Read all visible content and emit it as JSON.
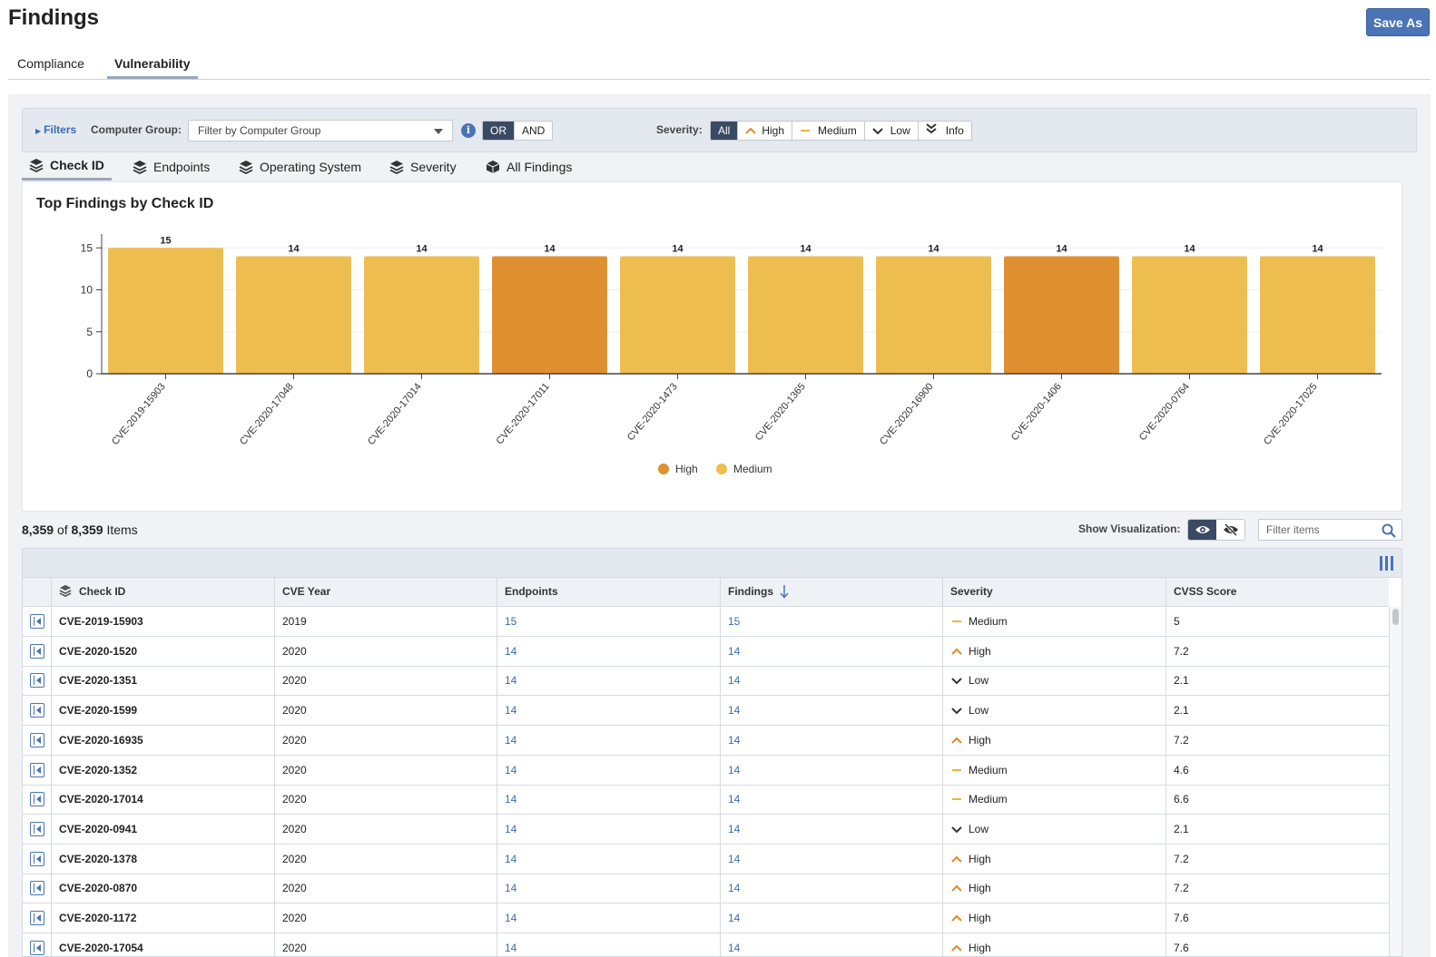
{
  "page": {
    "title": "Findings",
    "save_as_label": "Save As"
  },
  "main_tabs": [
    {
      "label": "Compliance",
      "active": false
    },
    {
      "label": "Vulnerability",
      "active": true
    }
  ],
  "filters": {
    "toggle_label": "Filters",
    "computer_group_label": "Computer Group:",
    "computer_group_placeholder": "Filter by Computer Group",
    "logic": [
      "OR",
      "AND"
    ],
    "logic_selected": "OR",
    "severity_label": "Severity:",
    "severity_options": [
      "All",
      "High",
      "Medium",
      "Low",
      "Info"
    ],
    "severity_selected": "All"
  },
  "sub_tabs": [
    {
      "label": "Check ID",
      "active": true
    },
    {
      "label": "Endpoints",
      "active": false
    },
    {
      "label": "Operating System",
      "active": false
    },
    {
      "label": "Severity",
      "active": false
    },
    {
      "label": "All Findings",
      "active": false
    }
  ],
  "chart_data": {
    "type": "bar",
    "title": "Top Findings by Check ID",
    "categories": [
      "CVE-2019-15903",
      "CVE-2020-17048",
      "CVE-2020-17014",
      "CVE-2020-17011",
      "CVE-2020-1473",
      "CVE-2020-1365",
      "CVE-2020-16900",
      "CVE-2020-1406",
      "CVE-2020-0764",
      "CVE-2020-17025"
    ],
    "values": [
      15,
      14,
      14,
      14,
      14,
      14,
      14,
      14,
      14,
      14
    ],
    "bar_severity": [
      "Medium",
      "Medium",
      "Medium",
      "High",
      "Medium",
      "Medium",
      "Medium",
      "High",
      "Medium",
      "Medium"
    ],
    "series": [
      {
        "name": "High",
        "color": "#df8f30"
      },
      {
        "name": "Medium",
        "color": "#edbe4f"
      }
    ],
    "yticks": [
      0,
      5,
      10,
      15
    ],
    "ylim": [
      0,
      16
    ],
    "xlabel": "",
    "ylabel": "",
    "legend_position": "bottom-center",
    "grid": true
  },
  "items": {
    "shown": "8,359",
    "of_label": "of",
    "total": "8,359",
    "suffix": "Items"
  },
  "visualization": {
    "label": "Show Visualization:",
    "state": "shown"
  },
  "search": {
    "placeholder": "Filter items"
  },
  "table": {
    "columns": [
      "Check ID",
      "CVE Year",
      "Endpoints",
      "Findings",
      "Severity",
      "CVSS Score"
    ],
    "sorted_column": "Findings",
    "sort_direction": "desc",
    "rows": [
      {
        "check_id": "CVE-2019-15903",
        "year": "2019",
        "endpoints": "15",
        "findings": "15",
        "severity": "Medium",
        "cvss": "5"
      },
      {
        "check_id": "CVE-2020-1520",
        "year": "2020",
        "endpoints": "14",
        "findings": "14",
        "severity": "High",
        "cvss": "7.2"
      },
      {
        "check_id": "CVE-2020-1351",
        "year": "2020",
        "endpoints": "14",
        "findings": "14",
        "severity": "Low",
        "cvss": "2.1"
      },
      {
        "check_id": "CVE-2020-1599",
        "year": "2020",
        "endpoints": "14",
        "findings": "14",
        "severity": "Low",
        "cvss": "2.1"
      },
      {
        "check_id": "CVE-2020-16935",
        "year": "2020",
        "endpoints": "14",
        "findings": "14",
        "severity": "High",
        "cvss": "7.2"
      },
      {
        "check_id": "CVE-2020-1352",
        "year": "2020",
        "endpoints": "14",
        "findings": "14",
        "severity": "Medium",
        "cvss": "4.6"
      },
      {
        "check_id": "CVE-2020-17014",
        "year": "2020",
        "endpoints": "14",
        "findings": "14",
        "severity": "Medium",
        "cvss": "6.6"
      },
      {
        "check_id": "CVE-2020-0941",
        "year": "2020",
        "endpoints": "14",
        "findings": "14",
        "severity": "Low",
        "cvss": "2.1"
      },
      {
        "check_id": "CVE-2020-1378",
        "year": "2020",
        "endpoints": "14",
        "findings": "14",
        "severity": "High",
        "cvss": "7.2"
      },
      {
        "check_id": "CVE-2020-0870",
        "year": "2020",
        "endpoints": "14",
        "findings": "14",
        "severity": "High",
        "cvss": "7.2"
      },
      {
        "check_id": "CVE-2020-1172",
        "year": "2020",
        "endpoints": "14",
        "findings": "14",
        "severity": "High",
        "cvss": "7.6"
      },
      {
        "check_id": "CVE-2020-17054",
        "year": "2020",
        "endpoints": "14",
        "findings": "14",
        "severity": "High",
        "cvss": "7.6"
      }
    ]
  },
  "colors": {
    "accent": "#4a74b5",
    "high": "#df8f30",
    "medium": "#edbe4f",
    "low": "#333333",
    "selected_dark": "#3a4a63"
  }
}
